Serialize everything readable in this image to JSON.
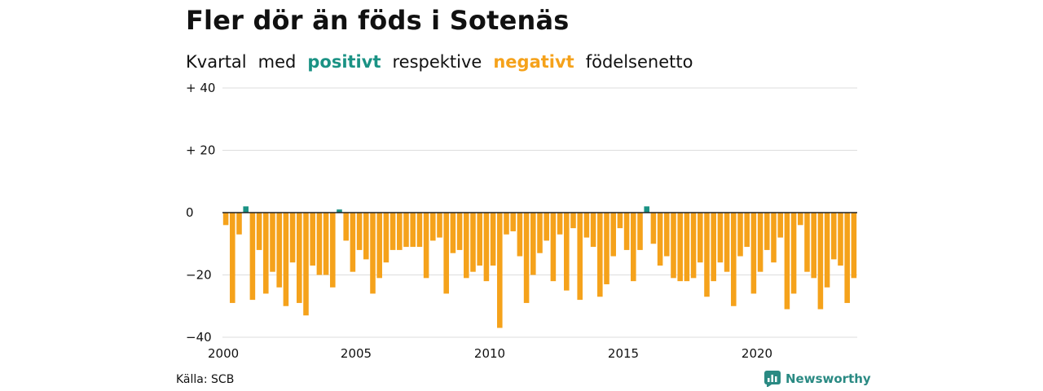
{
  "title": "Fler dör än föds i Sotenäs",
  "subtitle": {
    "w1": "Kvartal",
    "w2": "med",
    "positive": "positivt",
    "w3": "respektive",
    "negative": "negativt",
    "w4": "födelsenetto"
  },
  "source": "Källa: SCB",
  "brand": {
    "name": "Newsworthy",
    "icon": "bar-chart-logo-icon"
  },
  "colors": {
    "positive": "#1a9284",
    "negative": "#f5a21b",
    "grid": "#dddddd",
    "axis": "#222222"
  },
  "chart_data": {
    "type": "bar",
    "title": "Fler dör än föds i Sotenäs",
    "xlabel": "",
    "ylabel": "",
    "ylim": [
      -40,
      40
    ],
    "y_ticks": [
      40,
      20,
      0,
      -20,
      -40
    ],
    "y_tick_labels": [
      "+ 40",
      "+ 20",
      "0",
      "−20",
      "−40"
    ],
    "xlim": [
      2000,
      2023.75
    ],
    "x_ticks": [
      2000,
      2005,
      2010,
      2015,
      2020
    ],
    "x_tick_labels": [
      "2000",
      "2005",
      "2010",
      "2015",
      "2020"
    ],
    "grid": true,
    "start_quarter": "2000 Q1",
    "values": [
      -4,
      -29,
      -7,
      2,
      -28,
      -12,
      -26,
      -19,
      -24,
      -30,
      -16,
      -29,
      -33,
      -17,
      -20,
      -20,
      -24,
      1,
      -9,
      -19,
      -12,
      -15,
      -26,
      -21,
      -16,
      -12,
      -12,
      -11,
      -11,
      -11,
      -21,
      -9,
      -8,
      -26,
      -13,
      -12,
      -21,
      -19,
      -17,
      -22,
      -17,
      -37,
      -7,
      -6,
      -14,
      -29,
      -20,
      -13,
      -9,
      -22,
      -7,
      -25,
      -5,
      -28,
      -8,
      -11,
      -27,
      -23,
      -14,
      -5,
      -12,
      -22,
      -12,
      2,
      -10,
      -17,
      -14,
      -21,
      -22,
      -22,
      -21,
      -16,
      -27,
      -22,
      -16,
      -19,
      -30,
      -14,
      -11,
      -26,
      -19,
      -12,
      -16,
      -8,
      -31,
      -26,
      -4,
      -19,
      -21,
      -31,
      -24,
      -15,
      -17,
      -29,
      -21
    ]
  }
}
